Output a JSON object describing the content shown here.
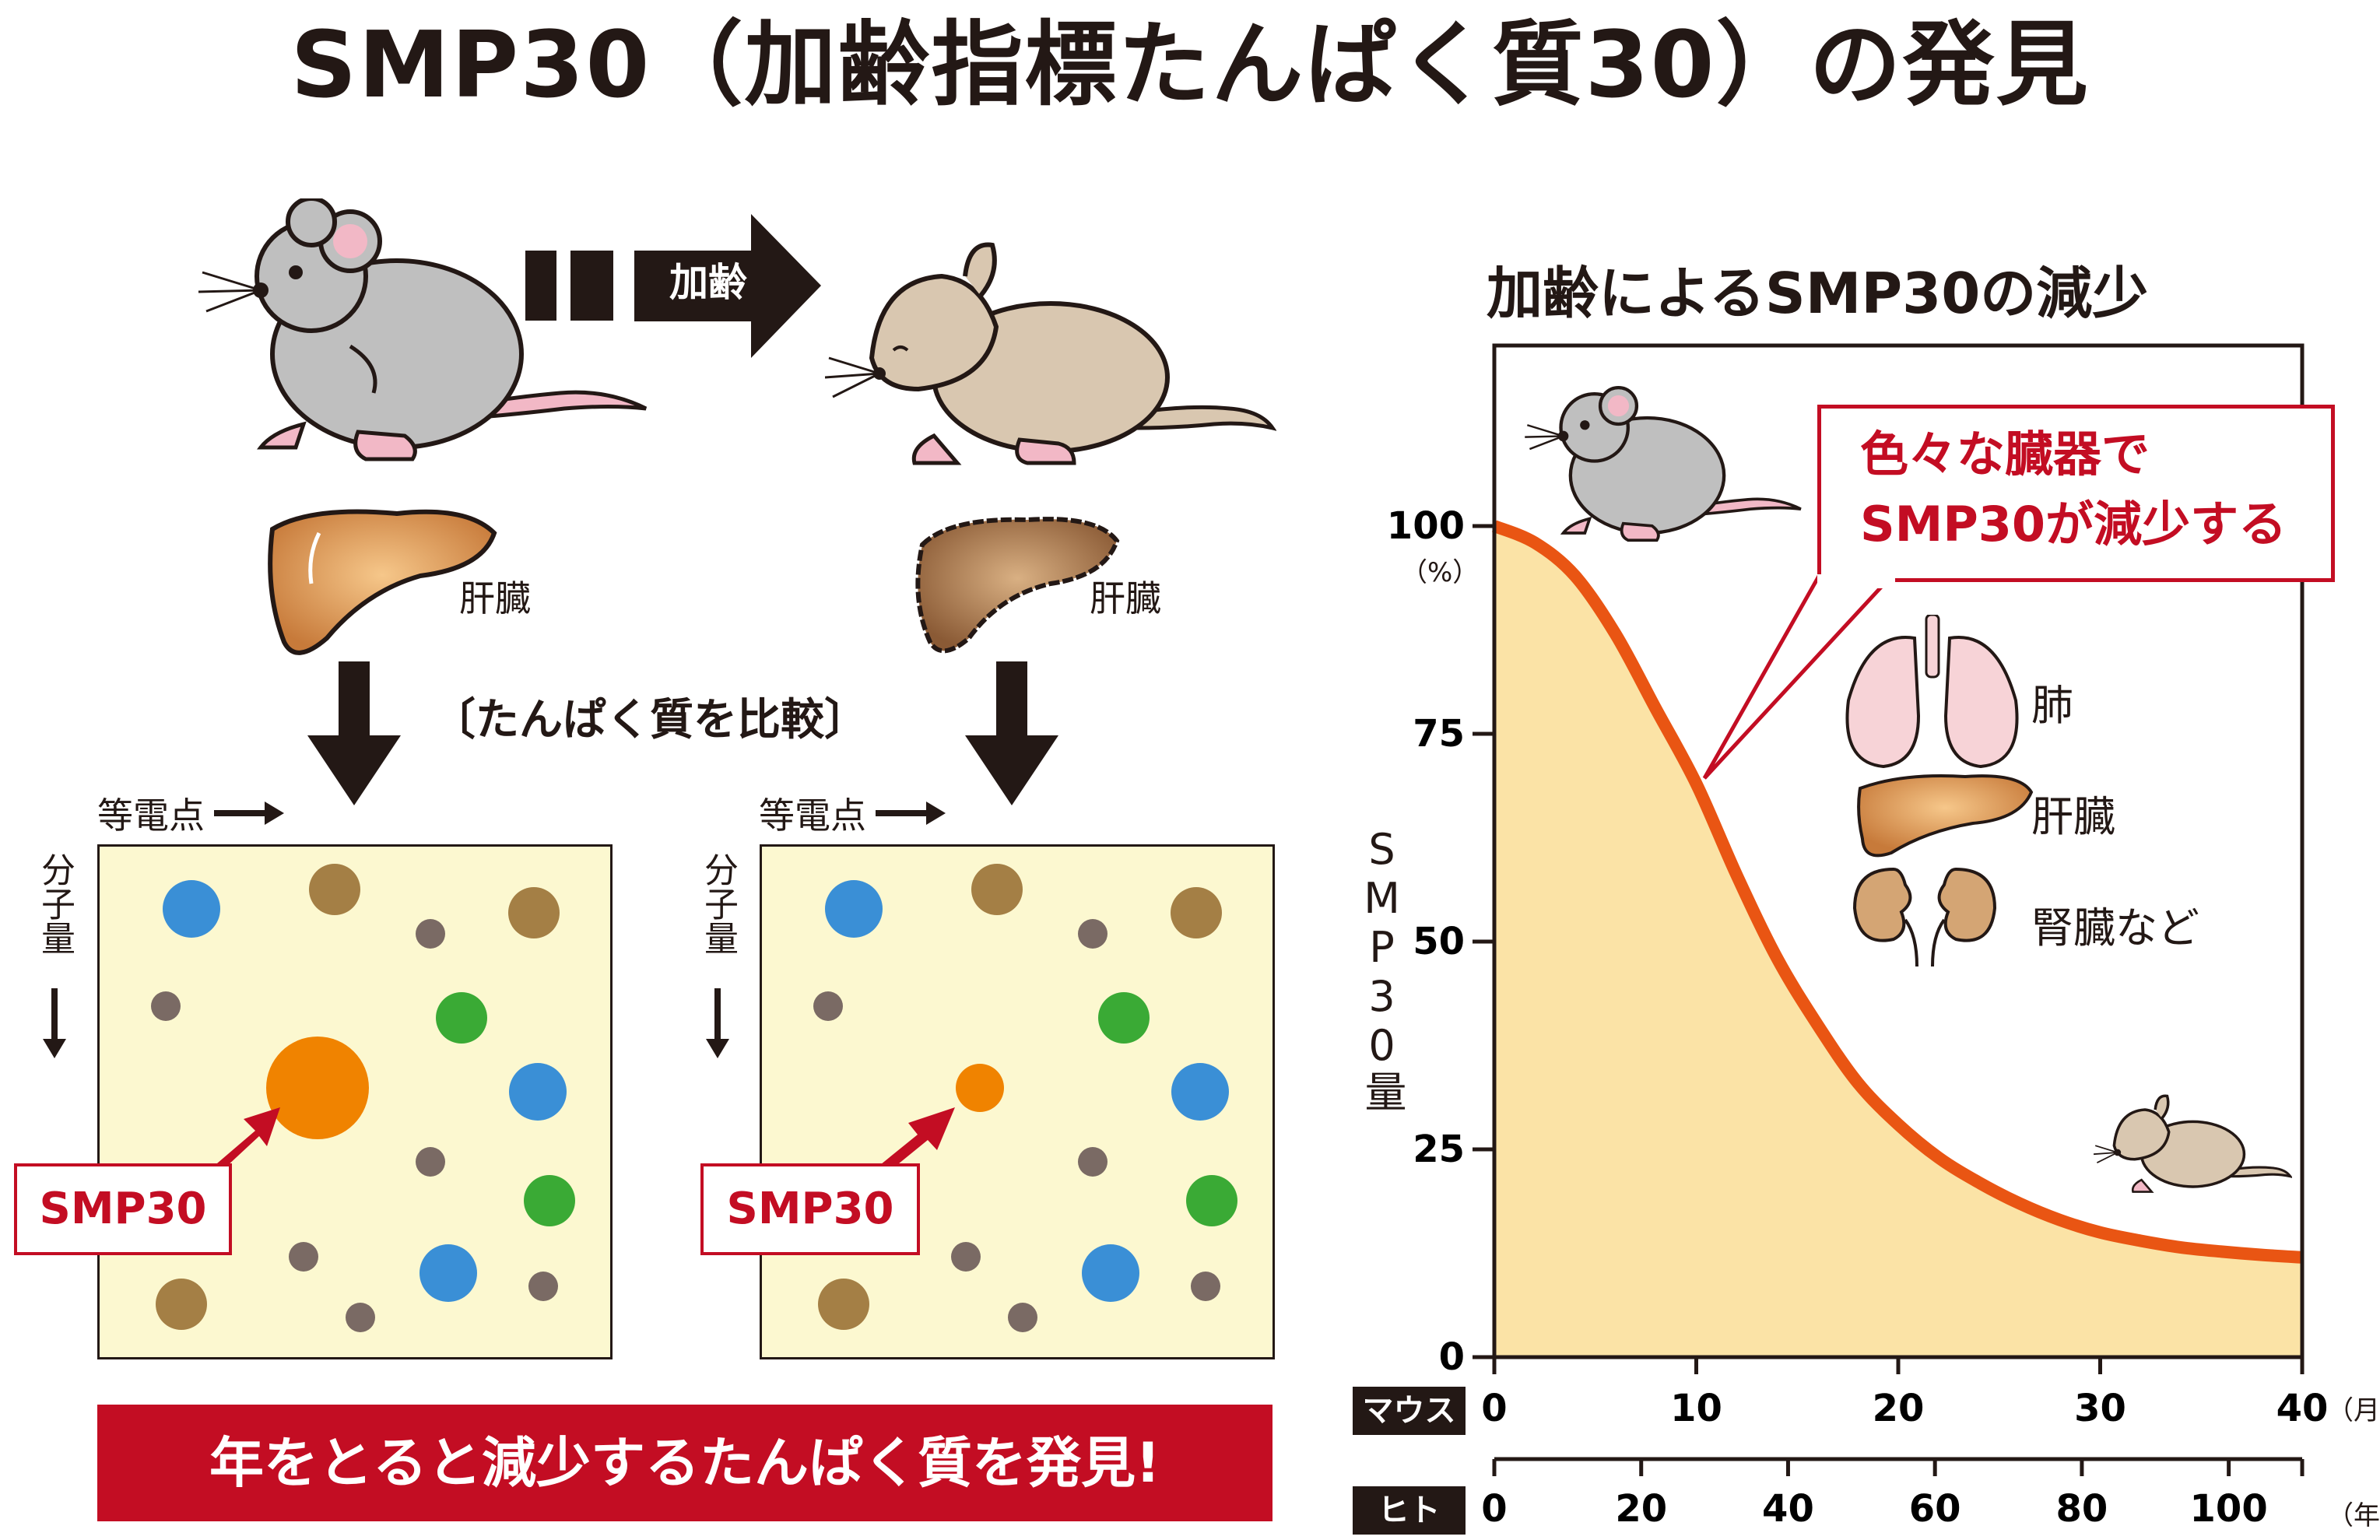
{
  "title": "SMP30（加齢指標たんぱく質30）の発見",
  "left": {
    "aging_arrow_label": "加齢",
    "organ_label_young": "肝臓",
    "organ_label_old": "肝臓",
    "compare_label": "〔たんぱく質を比較〕",
    "isoelectric_label_1": "等電点",
    "isoelectric_label_2": "等電点",
    "molecular_weight_label_1": "分子量",
    "molecular_weight_label_2": "分子量",
    "smp_label_1": "SMP30",
    "smp_label_2": "SMP30",
    "banner": "年をとると減少するたんぱく質を発見!"
  },
  "colors": {
    "red": "#c30d23",
    "curve": "#e95513",
    "fill": "#fbe3a6",
    "gel": "#fcf8d0",
    "spot_blue": "#3a8fd6",
    "spot_green": "#3aaa35",
    "spot_brown_large": "#a47f45",
    "spot_gray": "#7a6a64",
    "spot_orange": "#f08300"
  },
  "chart_data": {
    "type": "area",
    "title": "加齢によるSMP30の減少",
    "ylabel": "SMP30量",
    "y_unit": "（%）",
    "ylim": [
      0,
      100
    ],
    "yticks": [
      "0",
      "25",
      "50",
      "75",
      "100"
    ],
    "x_mouse": {
      "tag": "マウス",
      "ticks": [
        "0",
        "10",
        "20",
        "30",
        "40"
      ],
      "unit": "（月）"
    },
    "x_human": {
      "tag": "ヒト",
      "ticks": [
        "0",
        "20",
        "40",
        "60",
        "80",
        "100"
      ],
      "unit": "（年）"
    },
    "series": [
      {
        "x": [
          0,
          2,
          4,
          6,
          8,
          10,
          12,
          14,
          16,
          18,
          20,
          22,
          24,
          26,
          28,
          30,
          32,
          34,
          36,
          38,
          40
        ],
        "values": [
          100,
          98,
          94,
          87,
          78,
          69,
          58,
          48,
          40,
          33,
          28,
          24,
          21,
          18.5,
          16.5,
          15,
          14,
          13.2,
          12.7,
          12.3,
          12
        ]
      }
    ],
    "callout": "色々な臓器で\nSMP30が減少する",
    "organs": [
      "肺",
      "肝臓",
      "腎臓など"
    ]
  }
}
